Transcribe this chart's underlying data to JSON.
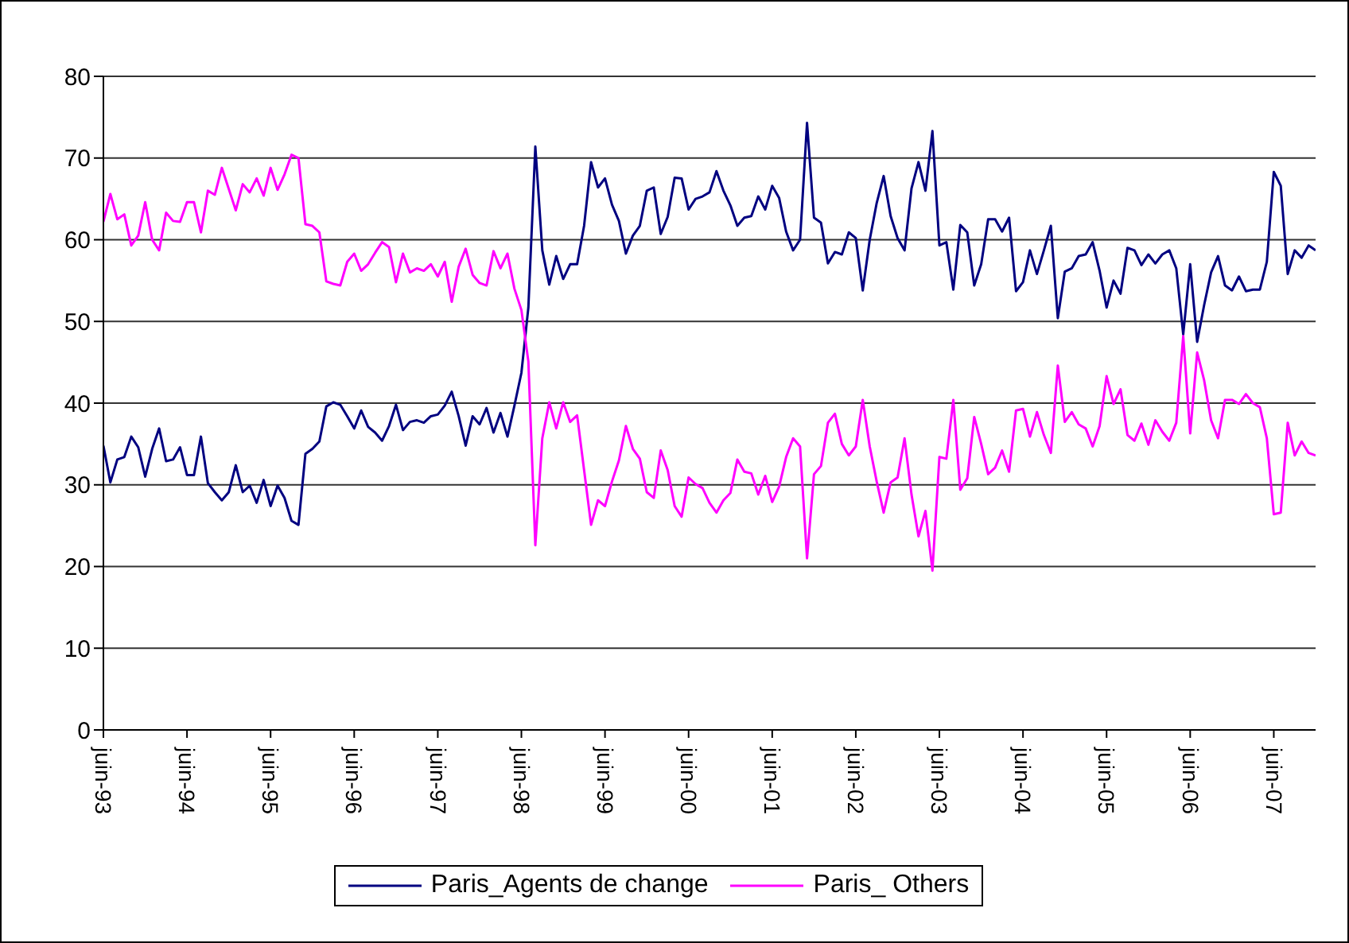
{
  "chart_data": {
    "type": "line",
    "categories": [
      "juin-93",
      null,
      null,
      null,
      null,
      null,
      null,
      null,
      null,
      null,
      null,
      null,
      "juin-94",
      null,
      null,
      null,
      null,
      null,
      null,
      null,
      null,
      null,
      null,
      null,
      "juin-95",
      null,
      null,
      null,
      null,
      null,
      null,
      null,
      null,
      null,
      null,
      null,
      "juin-96",
      null,
      null,
      null,
      null,
      null,
      null,
      null,
      null,
      null,
      null,
      null,
      "juin-97",
      null,
      null,
      null,
      null,
      null,
      null,
      null,
      null,
      null,
      null,
      null,
      "juin-98",
      null,
      null,
      null,
      null,
      null,
      null,
      null,
      null,
      null,
      null,
      null,
      "juin-99",
      null,
      null,
      null,
      null,
      null,
      null,
      null,
      null,
      null,
      null,
      null,
      "juin-00",
      null,
      null,
      null,
      null,
      null,
      null,
      null,
      null,
      null,
      null,
      null,
      "juin-01",
      null,
      null,
      null,
      null,
      null,
      null,
      null,
      null,
      null,
      null,
      null,
      "juin-02",
      null,
      null,
      null,
      null,
      null,
      null,
      null,
      null,
      null,
      null,
      null,
      "juin-03",
      null,
      null,
      null,
      null,
      null,
      null,
      null,
      null,
      null,
      null,
      null,
      "juin-04",
      null,
      null,
      null,
      null,
      null,
      null,
      null,
      null,
      null,
      null,
      null,
      "juin-05",
      null,
      null,
      null,
      null,
      null,
      null,
      null,
      null,
      null,
      null,
      null,
      "juin-06",
      null,
      null,
      null,
      null,
      null,
      null,
      null,
      null,
      null,
      null,
      null,
      "juin-07",
      null,
      null,
      null,
      null,
      null,
      null
    ],
    "series": [
      {
        "name": "Paris_Agents de change",
        "color": "#000080",
        "values": [
          34.8,
          30.3,
          33.1,
          33.4,
          35.9,
          34.6,
          31.0,
          34.4,
          36.9,
          32.9,
          33.1,
          34.6,
          31.2,
          31.2,
          35.9,
          30.2,
          29.1,
          28.1,
          29.1,
          32.4,
          29.1,
          29.9,
          27.8,
          30.6,
          27.4,
          29.9,
          28.4,
          25.6,
          25.1,
          33.8,
          34.4,
          35.3,
          39.6,
          40.1,
          39.8,
          38.4,
          36.9,
          39.1,
          37.1,
          36.4,
          35.4,
          37.2,
          39.8,
          36.7,
          37.7,
          37.9,
          37.6,
          38.4,
          38.6,
          39.7,
          41.4,
          38.4,
          34.8,
          38.4,
          37.4,
          39.4,
          36.4,
          38.8,
          35.9,
          39.7,
          43.7,
          51.7,
          71.4,
          58.7,
          54.5,
          58.0,
          55.2,
          57.0,
          57.0,
          61.7,
          69.5,
          66.4,
          67.5,
          64.3,
          62.3,
          58.3,
          60.5,
          61.7,
          66.0,
          66.4,
          60.7,
          62.8,
          67.6,
          67.5,
          63.7,
          65.0,
          65.3,
          65.8,
          68.4,
          66.0,
          64.2,
          61.7,
          62.7,
          62.9,
          65.3,
          63.7,
          66.6,
          65.1,
          61.0,
          58.7,
          60.0,
          74.3,
          62.7,
          62.1,
          57.1,
          58.5,
          58.2,
          60.9,
          60.2,
          53.8,
          60.0,
          64.5,
          67.8,
          62.9,
          60.2,
          58.7,
          66.3,
          69.5,
          66.0,
          73.3,
          59.3,
          59.7,
          53.9,
          61.8,
          60.9,
          54.4,
          57.0,
          62.5,
          62.5,
          61.0,
          62.7,
          53.7,
          54.8,
          58.7,
          55.8,
          58.7,
          61.7,
          50.4,
          56.1,
          56.5,
          58.0,
          58.2,
          59.7,
          56.2,
          51.7,
          55.0,
          53.4,
          59.0,
          58.7,
          56.9,
          58.2,
          57.1,
          58.2,
          58.7,
          56.5,
          48.4,
          57.0,
          47.5,
          52.0,
          56.0,
          58.0,
          54.4,
          53.8,
          55.5,
          53.7,
          53.9,
          53.9,
          57.3,
          68.3,
          66.6,
          55.8,
          58.7,
          57.8,
          59.3,
          58.7
        ]
      },
      {
        "name": "Paris_ Others",
        "color": "#ff00ff",
        "values": [
          62.2,
          65.6,
          62.5,
          63.1,
          59.3,
          60.5,
          64.6,
          60.0,
          58.7,
          63.3,
          62.3,
          62.2,
          64.6,
          64.6,
          60.9,
          66.0,
          65.5,
          68.8,
          66.2,
          63.6,
          66.8,
          65.8,
          67.5,
          65.4,
          68.8,
          66.1,
          68.0,
          70.4,
          70.0,
          61.9,
          61.7,
          60.9,
          54.9,
          54.6,
          54.4,
          57.3,
          58.3,
          56.2,
          57.0,
          58.4,
          59.7,
          59.1,
          54.8,
          58.3,
          56.0,
          56.5,
          56.2,
          57.0,
          55.5,
          57.3,
          52.4,
          56.7,
          58.9,
          55.7,
          54.7,
          54.4,
          58.6,
          56.5,
          58.3,
          54.0,
          51.4,
          45.1,
          22.6,
          35.7,
          40.1,
          36.9,
          40.1,
          37.7,
          38.5,
          31.8,
          25.1,
          28.1,
          27.4,
          30.4,
          33.0,
          37.2,
          34.4,
          33.2,
          29.1,
          28.4,
          34.2,
          31.8,
          27.4,
          26.1,
          30.9,
          30.1,
          29.6,
          27.8,
          26.6,
          28.1,
          29.0,
          33.1,
          31.6,
          31.4,
          28.8,
          31.1,
          27.9,
          29.8,
          33.4,
          35.7,
          34.7,
          21.0,
          31.3,
          32.3,
          37.6,
          38.7,
          35.0,
          33.6,
          34.7,
          40.4,
          34.7,
          30.4,
          26.6,
          30.3,
          30.9,
          35.7,
          28.8,
          23.7,
          26.8,
          19.5,
          33.4,
          33.2,
          40.4,
          29.4,
          30.8,
          38.3,
          35.0,
          31.3,
          32.1,
          34.2,
          31.6,
          39.1,
          39.3,
          35.9,
          38.9,
          36.1,
          33.9,
          44.6,
          37.7,
          38.9,
          37.4,
          36.9,
          34.7,
          37.2,
          43.3,
          39.9,
          41.7,
          36.1,
          35.4,
          37.5,
          34.9,
          37.9,
          36.5,
          35.4,
          37.6,
          48.2,
          36.3,
          46.2,
          42.8,
          37.9,
          35.7,
          40.4,
          40.4,
          39.9,
          41.1,
          40.0,
          39.5,
          35.7,
          26.4,
          26.6,
          37.6,
          33.6,
          35.3,
          33.9,
          33.6
        ]
      }
    ],
    "ylim": [
      0,
      80
    ],
    "yticks": [
      0,
      10,
      20,
      30,
      40,
      50,
      60,
      70,
      80
    ],
    "grid": "y",
    "legend": "bottom"
  }
}
